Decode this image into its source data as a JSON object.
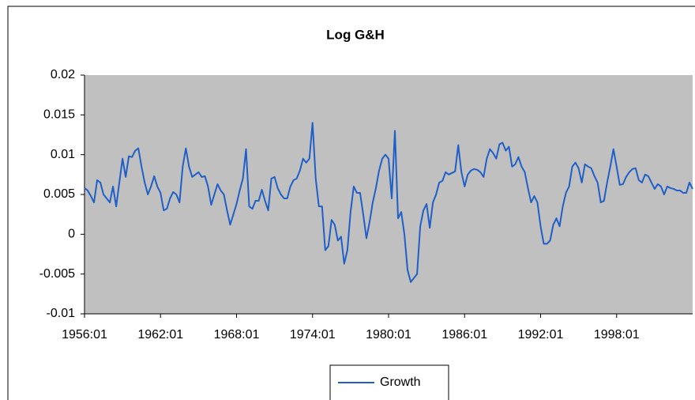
{
  "chart_data": {
    "type": "line",
    "title": "Log G&H",
    "categories": [
      "1956:01",
      null,
      null,
      null,
      null,
      null,
      null,
      null,
      null,
      null,
      null,
      null,
      null,
      null,
      null,
      null,
      null,
      null,
      null,
      null,
      null,
      null,
      null,
      null,
      "1962:01",
      null,
      null,
      null,
      null,
      null,
      null,
      null,
      null,
      null,
      null,
      null,
      null,
      null,
      null,
      null,
      null,
      null,
      null,
      null,
      null,
      null,
      null,
      null,
      "1968:01",
      null,
      null,
      null,
      null,
      null,
      null,
      null,
      null,
      null,
      null,
      null,
      null,
      null,
      null,
      null,
      null,
      null,
      null,
      null,
      null,
      null,
      null,
      null,
      "1974:01",
      null,
      null,
      null,
      null,
      null,
      null,
      null,
      null,
      null,
      null,
      null,
      null,
      null,
      null,
      null,
      null,
      null,
      null,
      null,
      null,
      null,
      null,
      null,
      "1980:01",
      null,
      null,
      null,
      null,
      null,
      null,
      null,
      null,
      null,
      null,
      null,
      null,
      null,
      null,
      null,
      null,
      null,
      null,
      null,
      null,
      null,
      null,
      null,
      "1986:01",
      null,
      null,
      null,
      null,
      null,
      null,
      null,
      null,
      null,
      null,
      null,
      null,
      null,
      null,
      null,
      null,
      null,
      null,
      null,
      null,
      null,
      null,
      null,
      "1992:01",
      null,
      null,
      null,
      null,
      null,
      null,
      null,
      null,
      null,
      null,
      null,
      null,
      null,
      null,
      null,
      null,
      null,
      null,
      null,
      null,
      null,
      null,
      null,
      "1998:01",
      null,
      null,
      null,
      null,
      null,
      null,
      null,
      null,
      null,
      null,
      null,
      null,
      null,
      null,
      null,
      null,
      null,
      null,
      null,
      null,
      null,
      null,
      null,
      null
    ],
    "series": [
      {
        "name": "Growth",
        "color": "#1f5fc8",
        "values": [
          0.0058,
          0.0055,
          0.0048,
          0.004,
          0.0068,
          0.0065,
          0.005,
          0.0045,
          0.004,
          0.006,
          0.0035,
          0.0065,
          0.0095,
          0.0072,
          0.0098,
          0.0097,
          0.0105,
          0.0108,
          0.0085,
          0.0065,
          0.005,
          0.006,
          0.0073,
          0.006,
          0.0052,
          0.003,
          0.0032,
          0.0045,
          0.0053,
          0.005,
          0.004,
          0.0085,
          0.0108,
          0.0085,
          0.0072,
          0.0075,
          0.0078,
          0.0072,
          0.0073,
          0.006,
          0.0037,
          0.005,
          0.0063,
          0.0055,
          0.005,
          0.003,
          0.0012,
          0.0025,
          0.0038,
          0.0055,
          0.007,
          0.0107,
          0.0035,
          0.0032,
          0.0042,
          0.0042,
          0.0056,
          0.0042,
          0.003,
          0.007,
          0.0072,
          0.0058,
          0.005,
          0.0045,
          0.0045,
          0.006,
          0.0068,
          0.007,
          0.008,
          0.0095,
          0.009,
          0.0095,
          0.014,
          0.007,
          0.0035,
          0.0035,
          -0.002,
          -0.0015,
          0.0018,
          0.0012,
          -0.0008,
          -0.0003,
          -0.0037,
          -0.002,
          0.0028,
          0.006,
          0.0052,
          0.0052,
          0.0025,
          -0.0005,
          0.0015,
          0.004,
          0.0058,
          0.008,
          0.0095,
          0.01,
          0.0095,
          0.0045,
          0.013,
          0.002,
          0.0028,
          0,
          -0.0045,
          -0.006,
          -0.0055,
          -0.005,
          0.001,
          0.003,
          0.0038,
          0.0008,
          0.004,
          0.005,
          0.0065,
          0.0067,
          0.0078,
          0.0075,
          0.0077,
          0.0079,
          0.0112,
          0.0078,
          0.006,
          0.0075,
          0.008,
          0.0082,
          0.0081,
          0.0078,
          0.0072,
          0.0095,
          0.0107,
          0.0102,
          0.0095,
          0.0113,
          0.0115,
          0.0105,
          0.011,
          0.0085,
          0.0088,
          0.0097,
          0.0085,
          0.0078,
          0.0058,
          0.004,
          0.0048,
          0.004,
          0.001,
          -0.0012,
          -0.0012,
          -0.0008,
          0.0012,
          0.002,
          0.001,
          0.0035,
          0.0052,
          0.006,
          0.0085,
          0.009,
          0.0083,
          0.0065,
          0.0088,
          0.0085,
          0.0083,
          0.0073,
          0.0065,
          0.004,
          0.0042,
          0.0065,
          0.0085,
          0.0107,
          0.0085,
          0.0062,
          0.0063,
          0.0072,
          0.0078,
          0.0082,
          0.0083,
          0.0068,
          0.0065,
          0.0075,
          0.0073,
          0.0065,
          0.0057,
          0.0063,
          0.006,
          0.005,
          0.006,
          0.0058,
          0.0057,
          0.0055,
          0.0055,
          0.0052,
          0.0052,
          0.0065,
          0.0057
        ]
      }
    ],
    "ylim": [
      -0.01,
      0.02
    ],
    "yticks": [
      -0.01,
      -0.005,
      0,
      0.005,
      0.01,
      0.015,
      0.02
    ],
    "grid": false,
    "plot_background": "#c0c0c0",
    "legend": "bottom"
  }
}
